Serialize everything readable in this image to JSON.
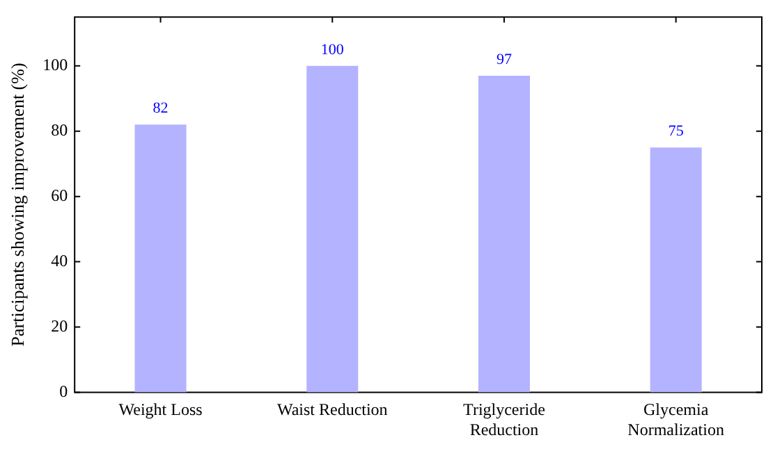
{
  "chart_data": {
    "type": "bar",
    "ylabel": "Participants showing improvement (%)",
    "categories": [
      "Weight Loss",
      "Waist Reduction",
      "Triglyceride Reduction",
      "Glycemia Normalization"
    ],
    "values": [
      82,
      100,
      97,
      75
    ],
    "color": "#b3b3ff",
    "ylim": [
      0,
      115
    ],
    "yticks": [
      0,
      20,
      40,
      60,
      80,
      100
    ],
    "grid": false,
    "legend": false,
    "data_labels": true
  }
}
